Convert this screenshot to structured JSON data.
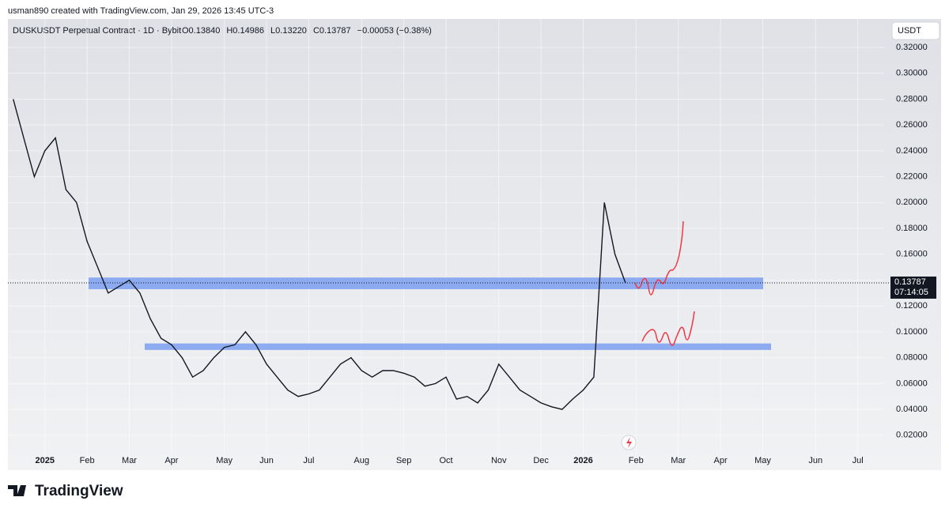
{
  "chart_data": {
    "type": "line",
    "attribution": "usman890 created with TradingView.com, Jan 29, 2026 13:45 UTC-3",
    "title": "DUSKUSDT Perpetual Contract · 1D · Bybit",
    "ohlc_legend": [
      "O0.13840",
      "H0.14986",
      "L0.13220",
      "C0.13787",
      "−0.00053 (−0.38%)"
    ],
    "currency": "USDT",
    "brand": "TradingView",
    "color": "#131722",
    "categories": [
      null,
      null,
      null,
      "2025",
      null,
      null,
      null,
      "Feb",
      null,
      null,
      null,
      "Mar",
      null,
      null,
      null,
      "Apr",
      null,
      null,
      null,
      null,
      "May",
      null,
      null,
      null,
      "Jun",
      null,
      null,
      null,
      "Jul",
      null,
      null,
      null,
      null,
      "Aug",
      null,
      null,
      null,
      "Sep",
      null,
      null,
      null,
      "Oct",
      null,
      null,
      null,
      null,
      "Nov",
      null,
      null,
      null,
      "Dec",
      null,
      null,
      null,
      "2026",
      null,
      null,
      null,
      null,
      "Feb",
      null,
      null,
      null,
      "Mar",
      null,
      null,
      null,
      "Apr",
      null,
      null,
      null,
      "May",
      null,
      null,
      null,
      null,
      "Jun",
      null,
      null,
      null,
      "Jul",
      null,
      null
    ],
    "values": [
      0.28,
      0.25,
      0.22,
      0.24,
      0.25,
      0.21,
      0.2,
      0.17,
      0.15,
      0.13,
      0.135,
      0.14,
      0.13,
      0.11,
      0.095,
      0.09,
      0.08,
      0.065,
      0.07,
      0.08,
      0.088,
      0.09,
      0.1,
      0.09,
      0.075,
      0.065,
      0.055,
      0.05,
      0.052,
      0.055,
      0.065,
      0.075,
      0.08,
      0.07,
      0.065,
      0.07,
      0.07,
      0.068,
      0.065,
      0.058,
      0.06,
      0.065,
      0.048,
      0.05,
      0.045,
      0.055,
      0.075,
      0.065,
      0.055,
      0.05,
      0.045,
      0.042,
      0.04,
      0.048,
      0.055,
      0.065,
      0.2,
      0.16,
      0.13787,
      null,
      null,
      null,
      null,
      null,
      null,
      null,
      null,
      null,
      null,
      null,
      null,
      null,
      null,
      null,
      null,
      null,
      null,
      null,
      null,
      null,
      null,
      null,
      null
    ],
    "ylim": [
      -0.007,
      0.342
    ],
    "yticks": [
      {
        "value": 0.02,
        "label": "0.02000"
      },
      {
        "value": 0.04,
        "label": "0.04000"
      },
      {
        "value": 0.06,
        "label": "0.06000"
      },
      {
        "value": 0.08,
        "label": "0.08000"
      },
      {
        "value": 0.1,
        "label": "0.10000"
      },
      {
        "value": 0.12,
        "label": "0.12000"
      },
      {
        "value": 0.14,
        "label": "0.14000"
      },
      {
        "value": 0.16,
        "label": "0.16000"
      },
      {
        "value": 0.18,
        "label": "0.18000"
      },
      {
        "value": 0.2,
        "label": "0.20000"
      },
      {
        "value": 0.22,
        "label": "0.22000"
      },
      {
        "value": 0.24,
        "label": "0.24000"
      },
      {
        "value": 0.26,
        "label": "0.26000"
      },
      {
        "value": 0.28,
        "label": "0.28000"
      },
      {
        "value": 0.3,
        "label": "0.30000"
      },
      {
        "value": 0.32,
        "label": "0.32000"
      }
    ],
    "last_price": {
      "value": 0.13787,
      "label": "0.13787"
    },
    "countdown": "07:14:05",
    "zones": [
      {
        "low": 0.133,
        "high": 0.142,
        "color": "#7b9ff0"
      },
      {
        "low": 0.086,
        "high": 0.091,
        "color": "#7b9ff0"
      }
    ],
    "grid": true
  }
}
